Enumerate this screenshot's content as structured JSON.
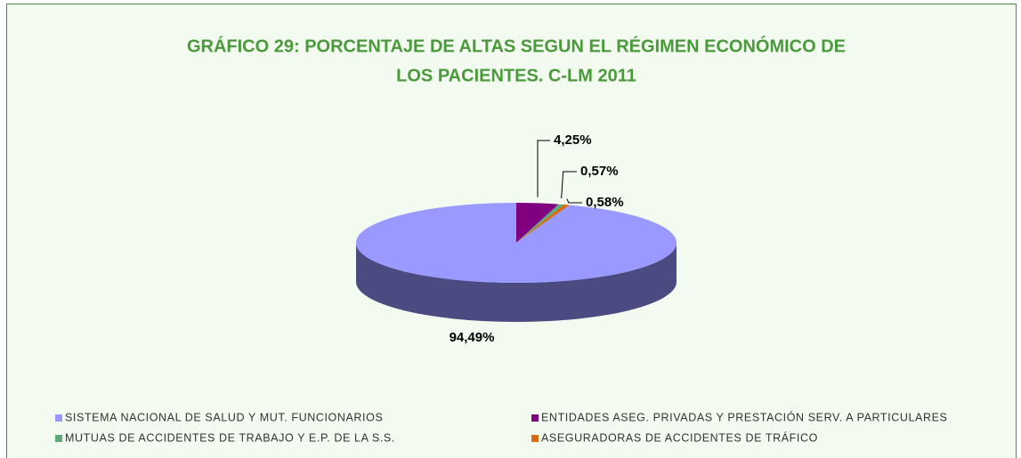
{
  "chart_data": {
    "type": "pie",
    "title": "GRÁFICO 29: PORCENTAJE DE ALTAS SEGUN EL RÉGIMEN ECONÓMICO DE",
    "subtitle": "LOS PACIENTES. C-LM 2011",
    "categories": [
      "SISTEMA NACIONAL DE SALUD Y MUT. FUNCIONARIOS",
      "ENTIDADES ASEG. PRIVADAS Y PRESTACIÓN SERV. A PARTICULARES",
      "MUTUAS DE ACCIDENTES DE TRABAJO Y E.P. DE LA S.S.",
      "ASEGURADORAS DE ACCIDENTES DE TRÁFICO"
    ],
    "values": [
      94.49,
      4.25,
      0.57,
      0.58
    ],
    "value_labels": [
      "94,49%",
      "4,25%",
      "0,57%",
      "0,58%"
    ],
    "colors": [
      "#9999ff",
      "#800080",
      "#5fa87a",
      "#d86a10"
    ],
    "legend": "bottom"
  }
}
